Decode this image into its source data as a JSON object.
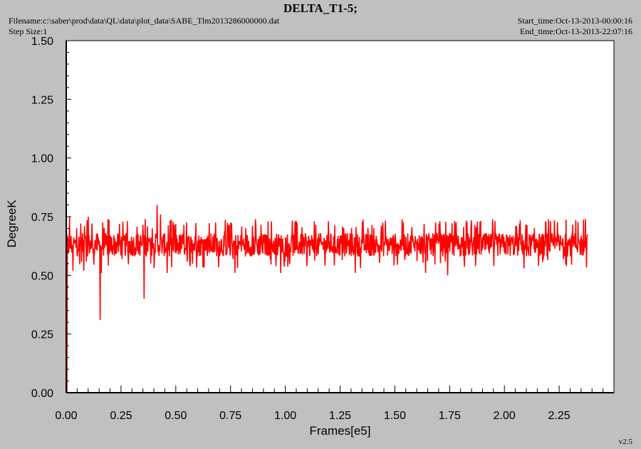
{
  "header": {
    "title": "DELTA_T1-5;",
    "filename": "Filename:c:\\saber\\prod\\data\\QL\\data\\plot_data\\SABE_Tlm2013286000000.dat",
    "step_size": "Step Size:1",
    "start_time": "Start_time:Oct-13-2013-00:00:16",
    "end_time": "End_time:Oct-13-2013-22:07:16",
    "version": "v2.5"
  },
  "colors": {
    "background": "#c0c0c0",
    "plot_area": "#ffffff",
    "series": "#ff0000"
  },
  "chart_data": {
    "type": "line",
    "xlabel": "Frames[e5]",
    "ylabel": "DegreeK",
    "xlim": [
      0,
      2.5
    ],
    "ylim": [
      0,
      1.5
    ],
    "x_ticks": [
      "0.00",
      "0.25",
      "0.50",
      "0.75",
      "1.00",
      "1.25",
      "1.50",
      "1.75",
      "2.00",
      "2.25"
    ],
    "y_ticks": [
      "0.00",
      "0.25",
      "0.50",
      "0.75",
      "1.00",
      "1.25",
      "1.50"
    ],
    "grid": false,
    "x_range_of_data": [
      0,
      2.38
    ],
    "series": [
      {
        "baseline_low": 0.58,
        "baseline_high": 0.68,
        "spikes": [
          {
            "x": 0.003,
            "y": 0.0
          },
          {
            "x": 0.015,
            "y": 0.75
          },
          {
            "x": 0.03,
            "y": 0.52
          },
          {
            "x": 0.08,
            "y": 0.52
          },
          {
            "x": 0.1,
            "y": 0.75
          },
          {
            "x": 0.155,
            "y": 0.31
          },
          {
            "x": 0.16,
            "y": 0.51
          },
          {
            "x": 0.19,
            "y": 0.74
          },
          {
            "x": 0.355,
            "y": 0.4
          },
          {
            "x": 0.36,
            "y": 0.74
          },
          {
            "x": 0.415,
            "y": 0.8
          },
          {
            "x": 0.43,
            "y": 0.76
          },
          {
            "x": 0.46,
            "y": 0.51
          },
          {
            "x": 0.77,
            "y": 0.51
          },
          {
            "x": 0.98,
            "y": 0.51
          },
          {
            "x": 1.32,
            "y": 0.51
          },
          {
            "x": 1.64,
            "y": 0.51
          },
          {
            "x": 1.74,
            "y": 0.5
          },
          {
            "x": 2.09,
            "y": 0.53
          },
          {
            "x": 2.37,
            "y": 0.74
          }
        ]
      }
    ]
  }
}
